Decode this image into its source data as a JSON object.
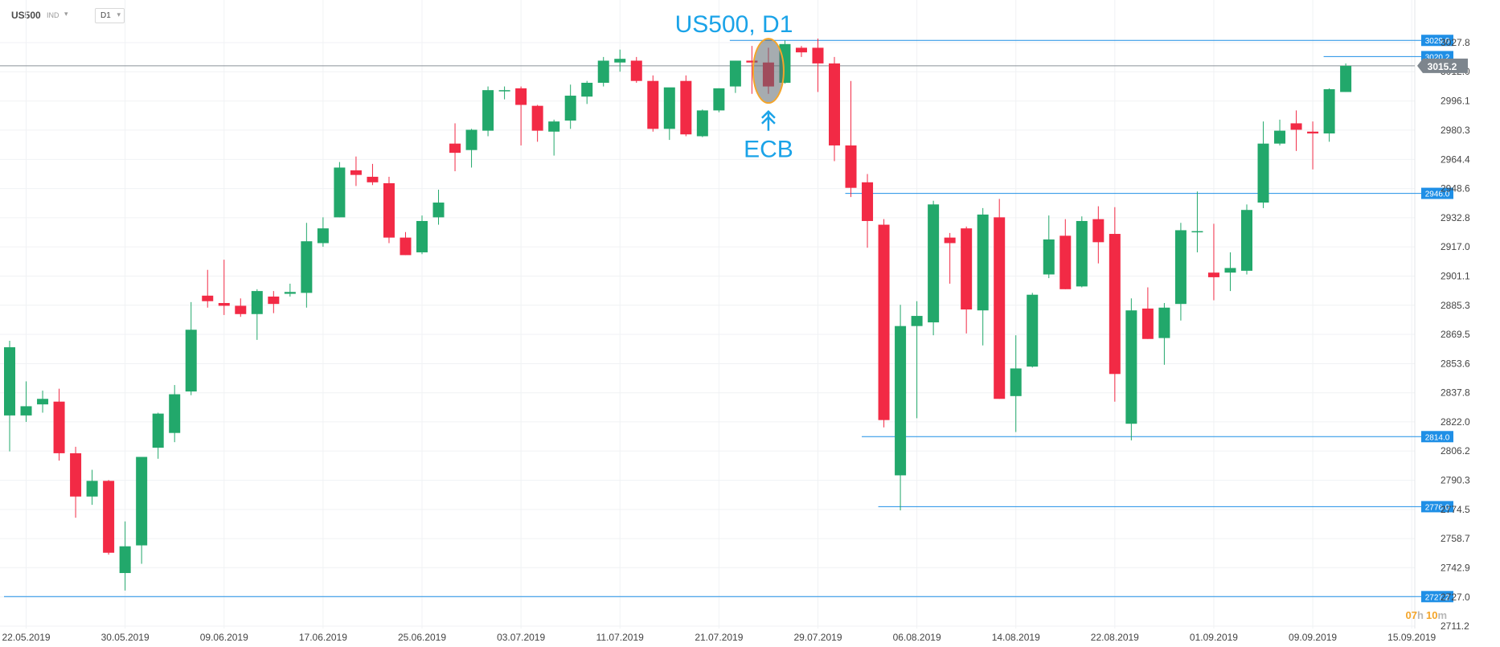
{
  "toolbar": {
    "symbol": "US500",
    "indicator_label": "IND",
    "indicator_icon": "chevron-down-icon",
    "timeframe": "D1",
    "timeframe_icon": "chevron-down-icon"
  },
  "chart_data": {
    "type": "candlestick",
    "title": "US500, D1",
    "annotation": {
      "text": "ECB",
      "icon": "double-up-arrow-icon",
      "candle_index": 46
    },
    "y_ticks": [
      3027.8,
      3012.0,
      2996.1,
      2980.3,
      2964.4,
      2948.6,
      2932.8,
      2917.0,
      2901.1,
      2885.3,
      2869.5,
      2853.6,
      2837.8,
      2822.0,
      2806.2,
      2790.3,
      2774.5,
      2758.7,
      2742.9,
      2727.0,
      2711.2
    ],
    "ylim": [
      2711.2,
      3027.8
    ],
    "x_labels": [
      {
        "label": "22.05.2019",
        "index": 1
      },
      {
        "label": "30.05.2019",
        "index": 7
      },
      {
        "label": "09.06.2019",
        "index": 13
      },
      {
        "label": "17.06.2019",
        "index": 19
      },
      {
        "label": "25.06.2019",
        "index": 25
      },
      {
        "label": "03.07.2019",
        "index": 31
      },
      {
        "label": "11.07.2019",
        "index": 37
      },
      {
        "label": "21.07.2019",
        "index": 43
      },
      {
        "label": "29.07.2019",
        "index": 49
      },
      {
        "label": "06.08.2019",
        "index": 55
      },
      {
        "label": "14.08.2019",
        "index": 61
      },
      {
        "label": "22.08.2019",
        "index": 67
      },
      {
        "label": "01.09.2019",
        "index": 73
      },
      {
        "label": "09.09.2019",
        "index": 79
      },
      {
        "label": "15.09.2019",
        "index": 85
      }
    ],
    "current_price": {
      "value": 3015.2,
      "label": "3015.2"
    },
    "countdown": {
      "hours": "07",
      "h": "h",
      "minutes": "10",
      "m": "m"
    },
    "levels": [
      {
        "label": "3029.0",
        "value": 3029.0,
        "from_index": 44
      },
      {
        "label": "3020.2",
        "value": 3020.2,
        "from_index": 80
      },
      {
        "label": "2946.0",
        "value": 2946.0,
        "from_index": 51
      },
      {
        "label": "2814.0",
        "value": 2814.0,
        "from_index": 52
      },
      {
        "label": "2776.0",
        "value": 2776.0,
        "from_index": 53
      },
      {
        "label": "2727.2",
        "value": 2727.2,
        "from_index": 0
      }
    ],
    "candles": [
      {
        "o": 2825.5,
        "h": 2866.0,
        "l": 2806.0,
        "c": 2862.5
      },
      {
        "o": 2825.5,
        "h": 2844.0,
        "l": 2822.0,
        "c": 2830.5
      },
      {
        "o": 2831.5,
        "h": 2839.0,
        "l": 2827.0,
        "c": 2834.5
      },
      {
        "o": 2833.0,
        "h": 2840.0,
        "l": 2801.0,
        "c": 2805.0
      },
      {
        "o": 2805.0,
        "h": 2808.5,
        "l": 2770.0,
        "c": 2781.5
      },
      {
        "o": 2781.5,
        "h": 2796.0,
        "l": 2777.0,
        "c": 2790.0
      },
      {
        "o": 2790.0,
        "h": 2790.5,
        "l": 2750.0,
        "c": 2751.0
      },
      {
        "o": 2740.0,
        "h": 2768.0,
        "l": 2730.5,
        "c": 2754.5
      },
      {
        "o": 2755.0,
        "h": 2803.0,
        "l": 2745.0,
        "c": 2803.0
      },
      {
        "o": 2808.0,
        "h": 2827.0,
        "l": 2802.0,
        "c": 2826.5
      },
      {
        "o": 2816.0,
        "h": 2842.0,
        "l": 2811.0,
        "c": 2837.0
      },
      {
        "o": 2838.5,
        "h": 2887.0,
        "l": 2836.5,
        "c": 2872.0
      },
      {
        "o": 2890.5,
        "h": 2904.5,
        "l": 2884.0,
        "c": 2887.5
      },
      {
        "o": 2886.5,
        "h": 2910.0,
        "l": 2880.0,
        "c": 2885.0
      },
      {
        "o": 2885.0,
        "h": 2889.0,
        "l": 2879.0,
        "c": 2880.5
      },
      {
        "o": 2880.5,
        "h": 2894.0,
        "l": 2866.5,
        "c": 2893.0
      },
      {
        "o": 2890.0,
        "h": 2893.0,
        "l": 2881.0,
        "c": 2886.0
      },
      {
        "o": 2891.5,
        "h": 2897.0,
        "l": 2890.0,
        "c": 2892.5
      },
      {
        "o": 2892.0,
        "h": 2930.0,
        "l": 2884.0,
        "c": 2920.0
      },
      {
        "o": 2919.0,
        "h": 2933.0,
        "l": 2917.0,
        "c": 2927.0
      },
      {
        "o": 2933.0,
        "h": 2963.0,
        "l": 2933.0,
        "c": 2960.0
      },
      {
        "o": 2958.5,
        "h": 2966.0,
        "l": 2950.0,
        "c": 2956.0
      },
      {
        "o": 2955.0,
        "h": 2962.0,
        "l": 2950.5,
        "c": 2952.0
      },
      {
        "o": 2951.5,
        "h": 2955.0,
        "l": 2919.0,
        "c": 2922.0
      },
      {
        "o": 2922.0,
        "h": 2925.0,
        "l": 2912.5,
        "c": 2912.5
      },
      {
        "o": 2914.0,
        "h": 2934.0,
        "l": 2913.0,
        "c": 2931.0
      },
      {
        "o": 2933.0,
        "h": 2948.0,
        "l": 2929.0,
        "c": 2941.0
      },
      {
        "o": 2973.0,
        "h": 2984.0,
        "l": 2958.0,
        "c": 2968.0
      },
      {
        "o": 2969.5,
        "h": 2981.0,
        "l": 2960.0,
        "c": 2980.5
      },
      {
        "o": 2980.0,
        "h": 3004.0,
        "l": 2977.0,
        "c": 3002.0
      },
      {
        "o": 3001.5,
        "h": 3004.0,
        "l": 2997.0,
        "c": 3002.0
      },
      {
        "o": 3003.0,
        "h": 3004.0,
        "l": 2972.0,
        "c": 2994.0
      },
      {
        "o": 2993.5,
        "h": 2994.0,
        "l": 2974.0,
        "c": 2980.0
      },
      {
        "o": 2979.5,
        "h": 2986.0,
        "l": 2966.5,
        "c": 2985.0
      },
      {
        "o": 2985.5,
        "h": 3005.0,
        "l": 2981.0,
        "c": 2999.0
      },
      {
        "o": 2998.5,
        "h": 3007.0,
        "l": 2994.5,
        "c": 3006.0
      },
      {
        "o": 3006.0,
        "h": 3020.0,
        "l": 3004.0,
        "c": 3018.0
      },
      {
        "o": 3017.0,
        "h": 3024.0,
        "l": 3012.0,
        "c": 3019.0
      },
      {
        "o": 3018.0,
        "h": 3020.0,
        "l": 3006.0,
        "c": 3007.0
      },
      {
        "o": 3007.0,
        "h": 3010.0,
        "l": 2979.5,
        "c": 2981.0
      },
      {
        "o": 2981.0,
        "h": 3003.0,
        "l": 2975.0,
        "c": 3003.5
      },
      {
        "o": 3007.0,
        "h": 3010.0,
        "l": 2977.0,
        "c": 2978.0
      },
      {
        "o": 2977.0,
        "h": 2991.5,
        "l": 2976.5,
        "c": 2991.0
      },
      {
        "o": 2991.0,
        "h": 3003.0,
        "l": 2990.0,
        "c": 3003.0
      },
      {
        "o": 3004.0,
        "h": 3018.0,
        "l": 3000.5,
        "c": 3018.0
      },
      {
        "o": 3018.0,
        "h": 3026.0,
        "l": 3000.0,
        "c": 3017.0
      },
      {
        "o": 3017.0,
        "h": 3025.0,
        "l": 3000.0,
        "c": 3004.0
      },
      {
        "o": 3006.0,
        "h": 3029.0,
        "l": 3005.5,
        "c": 3027.0
      },
      {
        "o": 3025.0,
        "h": 3026.0,
        "l": 3020.0,
        "c": 3022.5
      },
      {
        "o": 3025.0,
        "h": 3030.0,
        "l": 3001.0,
        "c": 3016.5
      },
      {
        "o": 3016.5,
        "h": 3020.0,
        "l": 2963.5,
        "c": 2972.0
      },
      {
        "o": 2972.0,
        "h": 3007.0,
        "l": 2944.0,
        "c": 2949.0
      },
      {
        "o": 2952.0,
        "h": 2956.5,
        "l": 2916.5,
        "c": 2931.0
      },
      {
        "o": 2929.0,
        "h": 2932.0,
        "l": 2819.0,
        "c": 2823.0
      },
      {
        "o": 2793.0,
        "h": 2885.5,
        "l": 2774.0,
        "c": 2874.0
      },
      {
        "o": 2874.0,
        "h": 2887.5,
        "l": 2824.0,
        "c": 2879.5
      },
      {
        "o": 2876.0,
        "h": 2942.0,
        "l": 2869.0,
        "c": 2940.0
      },
      {
        "o": 2922.0,
        "h": 2924.5,
        "l": 2897.0,
        "c": 2919.0
      },
      {
        "o": 2927.0,
        "h": 2928.0,
        "l": 2870.0,
        "c": 2883.0
      },
      {
        "o": 2882.5,
        "h": 2938.0,
        "l": 2863.5,
        "c": 2934.5
      },
      {
        "o": 2933.0,
        "h": 2943.0,
        "l": 2834.5,
        "c": 2834.5
      },
      {
        "o": 2836.0,
        "h": 2869.0,
        "l": 2816.5,
        "c": 2851.0
      },
      {
        "o": 2852.0,
        "h": 2892.0,
        "l": 2851.5,
        "c": 2891.0
      },
      {
        "o": 2902.0,
        "h": 2934.0,
        "l": 2900.0,
        "c": 2921.0
      },
      {
        "o": 2923.0,
        "h": 2932.0,
        "l": 2894.0,
        "c": 2894.0
      },
      {
        "o": 2895.5,
        "h": 2933.5,
        "l": 2895.0,
        "c": 2931.0
      },
      {
        "o": 2932.0,
        "h": 2939.0,
        "l": 2908.0,
        "c": 2919.5
      },
      {
        "o": 2924.0,
        "h": 2938.5,
        "l": 2833.0,
        "c": 2848.0
      },
      {
        "o": 2821.0,
        "h": 2889.0,
        "l": 2812.0,
        "c": 2882.5
      },
      {
        "o": 2883.5,
        "h": 2895.0,
        "l": 2867.0,
        "c": 2867.0
      },
      {
        "o": 2867.5,
        "h": 2886.5,
        "l": 2853.0,
        "c": 2884.0
      },
      {
        "o": 2886.0,
        "h": 2930.0,
        "l": 2877.0,
        "c": 2926.0
      },
      {
        "o": 2925.0,
        "h": 2947.0,
        "l": 2914.0,
        "c": 2925.5
      },
      {
        "o": 2903.0,
        "h": 2929.5,
        "l": 2888.0,
        "c": 2900.5
      },
      {
        "o": 2903.0,
        "h": 2914.0,
        "l": 2893.0,
        "c": 2905.5
      },
      {
        "o": 2904.0,
        "h": 2940.0,
        "l": 2902.0,
        "c": 2937.0
      },
      {
        "o": 2941.0,
        "h": 2985.0,
        "l": 2938.0,
        "c": 2973.0
      },
      {
        "o": 2973.0,
        "h": 2986.0,
        "l": 2972.0,
        "c": 2980.0
      },
      {
        "o": 2984.0,
        "h": 2991.0,
        "l": 2969.0,
        "c": 2980.5
      },
      {
        "o": 2979.5,
        "h": 2985.0,
        "l": 2959.0,
        "c": 2978.5
      },
      {
        "o": 2978.5,
        "h": 3003.0,
        "l": 2974.0,
        "c": 3002.5
      },
      {
        "o": 3001.0,
        "h": 3016.5,
        "l": 3001.0,
        "c": 3015.2
      }
    ]
  }
}
